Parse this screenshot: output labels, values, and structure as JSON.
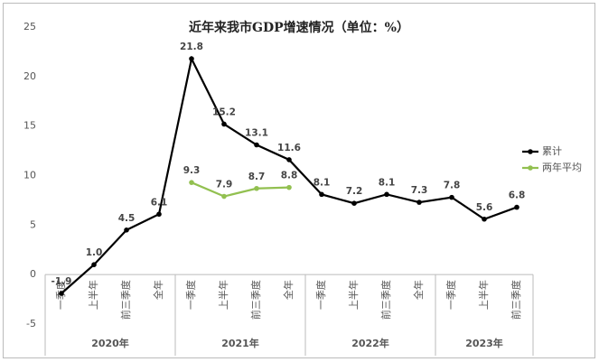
{
  "chart_data": {
    "type": "line",
    "title": "近年来我市GDP增速情况（单位：%）",
    "groups": [
      {
        "name": "2020年",
        "categories": [
          "一季度",
          "上半年",
          "前三季度",
          "全年"
        ]
      },
      {
        "name": "2021年",
        "categories": [
          "一季度",
          "上半年",
          "前三季度",
          "全年"
        ]
      },
      {
        "name": "2022年",
        "categories": [
          "一季度",
          "上半年",
          "前三季度",
          "全年"
        ]
      },
      {
        "name": "2023年",
        "categories": [
          "一季度",
          "上半年",
          "前三季度"
        ]
      }
    ],
    "series": [
      {
        "name": "累计",
        "color": "#000000",
        "values": [
          -1.9,
          1.0,
          4.5,
          6.1,
          21.8,
          15.2,
          13.1,
          11.6,
          8.1,
          7.2,
          8.1,
          7.3,
          7.8,
          5.6,
          6.8
        ],
        "value_labels": [
          "-1.9",
          "1.0",
          "4.5",
          "6.1",
          "21.8",
          "15.2",
          "13.1",
          "11.6",
          "8.1",
          "7.2",
          "8.1",
          "7.3",
          "7.8",
          "5.6",
          "6.8"
        ]
      },
      {
        "name": "两年平均",
        "color": "#92c050",
        "values": [
          null,
          null,
          null,
          null,
          9.3,
          7.9,
          8.7,
          8.8,
          null,
          null,
          null,
          null,
          null,
          null,
          null
        ]
      }
    ],
    "ylim": [
      -5,
      25
    ],
    "yticks": [
      -5,
      0,
      5,
      10,
      15,
      20,
      25
    ],
    "grid": false,
    "legend": "right"
  }
}
